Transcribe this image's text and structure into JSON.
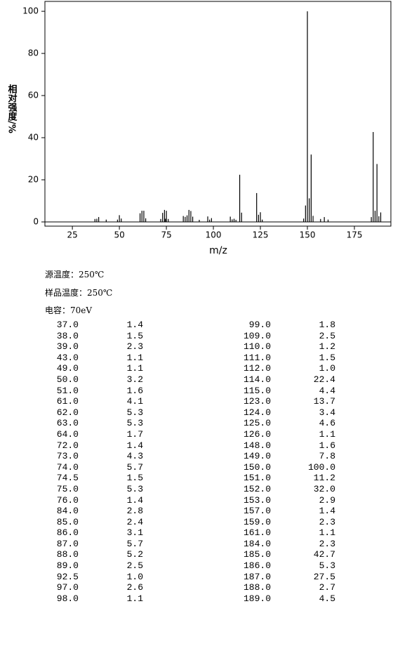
{
  "chart_data": {
    "type": "bar",
    "y_label": "相对强度/%",
    "x_label": "m/z",
    "color": "#000000",
    "x": [
      37,
      38,
      39,
      43,
      49,
      50,
      51,
      61,
      62,
      63,
      64,
      72,
      73,
      74,
      74.5,
      75,
      76,
      84,
      85,
      86,
      87,
      88,
      89,
      92.5,
      97,
      98,
      99,
      109,
      110,
      111,
      112,
      114,
      115,
      123,
      124,
      125,
      126,
      148,
      149,
      150,
      151,
      152,
      153,
      157,
      159,
      161,
      184,
      185,
      186,
      187,
      188,
      189
    ],
    "values": [
      1.4,
      1.5,
      2.3,
      1.1,
      1.1,
      3.2,
      1.6,
      4.1,
      5.3,
      5.3,
      1.7,
      1.4,
      4.3,
      5.7,
      1.5,
      5.3,
      1.4,
      2.8,
      2.4,
      3.1,
      5.7,
      5.2,
      2.5,
      1.0,
      2.6,
      1.1,
      1.8,
      2.5,
      1.2,
      1.5,
      1.0,
      22.4,
      4.4,
      13.7,
      3.4,
      4.6,
      1.1,
      1.6,
      7.8,
      100.0,
      11.2,
      32.0,
      2.9,
      1.4,
      2.3,
      1.1,
      2.3,
      42.7,
      5.3,
      27.5,
      2.7,
      4.5
    ],
    "xlim": [
      10.4,
      194.4
    ],
    "ylim": [
      -2,
      104.7
    ],
    "xticks": [
      25,
      50,
      75,
      100,
      125,
      150,
      175
    ],
    "yticks": [
      0,
      20,
      40,
      60,
      80,
      100
    ]
  },
  "conditions": [
    "源温度：250℃",
    "样品温度：250℃",
    "电容：70eV"
  ],
  "table": {
    "rows": [
      [
        "37.0",
        "1.4",
        "99.0",
        "1.8"
      ],
      [
        "38.0",
        "1.5",
        "109.0",
        "2.5"
      ],
      [
        "39.0",
        "2.3",
        "110.0",
        "1.2"
      ],
      [
        "43.0",
        "1.1",
        "111.0",
        "1.5"
      ],
      [
        "49.0",
        "1.1",
        "112.0",
        "1.0"
      ],
      [
        "50.0",
        "3.2",
        "114.0",
        "22.4"
      ],
      [
        "51.0",
        "1.6",
        "115.0",
        "4.4"
      ],
      [
        "61.0",
        "4.1",
        "123.0",
        "13.7"
      ],
      [
        "62.0",
        "5.3",
        "124.0",
        "3.4"
      ],
      [
        "63.0",
        "5.3",
        "125.0",
        "4.6"
      ],
      [
        "64.0",
        "1.7",
        "126.0",
        "1.1"
      ],
      [
        "72.0",
        "1.4",
        "148.0",
        "1.6"
      ],
      [
        "73.0",
        "4.3",
        "149.0",
        "7.8"
      ],
      [
        "74.0",
        "5.7",
        "150.0",
        "100.0"
      ],
      [
        "74.5",
        "1.5",
        "151.0",
        "11.2"
      ],
      [
        "75.0",
        "5.3",
        "152.0",
        "32.0"
      ],
      [
        "76.0",
        "1.4",
        "153.0",
        "2.9"
      ],
      [
        "84.0",
        "2.8",
        "157.0",
        "1.4"
      ],
      [
        "85.0",
        "2.4",
        "159.0",
        "2.3"
      ],
      [
        "86.0",
        "3.1",
        "161.0",
        "1.1"
      ],
      [
        "87.0",
        "5.7",
        "184.0",
        "2.3"
      ],
      [
        "88.0",
        "5.2",
        "185.0",
        "42.7"
      ],
      [
        "89.0",
        "2.5",
        "186.0",
        "5.3"
      ],
      [
        "92.5",
        "1.0",
        "187.0",
        "27.5"
      ],
      [
        "97.0",
        "2.6",
        "188.0",
        "2.7"
      ],
      [
        "98.0",
        "1.1",
        "189.0",
        "4.5"
      ]
    ]
  }
}
